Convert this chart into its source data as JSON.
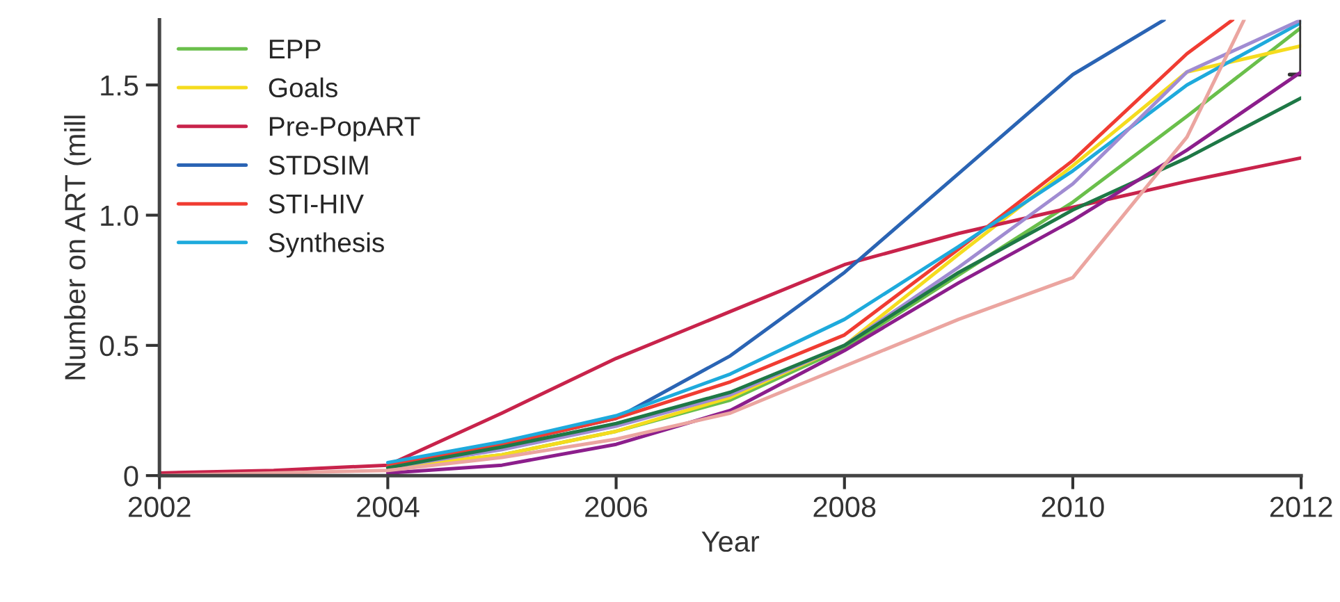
{
  "chart_data": {
    "type": "line",
    "xlabel": "Year",
    "ylabel": "Number on ART (mill",
    "xlim": [
      2002,
      2012
    ],
    "xticks": [
      2002,
      2004,
      2006,
      2008,
      2010,
      2012
    ],
    "ylim": [
      0,
      1.75
    ],
    "yticks": [
      0,
      {
        "value": 0.5,
        "label": "0.5"
      },
      {
        "value": 1.0,
        "label": "1.0"
      },
      {
        "value": 1.5,
        "label": "1.5"
      }
    ],
    "grid": false,
    "legend": "top left",
    "line_style": "solid",
    "marker": "none",
    "series": [
      {
        "name": "EPP",
        "color": "#6abf4b",
        "x": [
          2004,
          2005,
          2006,
          2007,
          2008,
          2009,
          2010,
          2011,
          2012
        ],
        "values": [
          0.03,
          0.08,
          0.17,
          0.29,
          0.49,
          0.77,
          1.05,
          1.38,
          1.72
        ]
      },
      {
        "name": "Goals",
        "color": "#f5dc1e",
        "x": [
          2004,
          2005,
          2006,
          2007,
          2008,
          2009,
          2010,
          2011,
          2012
        ],
        "values": [
          0.03,
          0.08,
          0.17,
          0.3,
          0.5,
          0.85,
          1.19,
          1.55,
          1.65
        ]
      },
      {
        "name": "Pre-PopART",
        "color": "#c8234b",
        "x": [
          2002,
          2003,
          2004,
          2005,
          2006,
          2007,
          2008,
          2009,
          2010,
          2011,
          2012
        ],
        "values": [
          0.01,
          0.02,
          0.04,
          0.24,
          0.45,
          0.63,
          0.81,
          0.93,
          1.03,
          1.13,
          1.22
        ]
      },
      {
        "name": "STDSIM",
        "color": "#2a64b4",
        "x": [
          2004,
          2005,
          2006,
          2007,
          2008,
          2009,
          2010,
          2010.8
        ],
        "values": [
          0.04,
          0.12,
          0.22,
          0.46,
          0.78,
          1.16,
          1.54,
          1.75
        ]
      },
      {
        "name": "STI-HIV",
        "color": "#f03c32",
        "x": [
          2004,
          2005,
          2006,
          2007,
          2008,
          2009,
          2010,
          2011,
          2011.4
        ],
        "values": [
          0.04,
          0.12,
          0.22,
          0.36,
          0.54,
          0.87,
          1.21,
          1.62,
          1.75
        ]
      },
      {
        "name": "Synthesis",
        "color": "#1eaadc",
        "x": [
          2004,
          2005,
          2006,
          2007,
          2008,
          2009,
          2010,
          2011,
          2012
        ],
        "values": [
          0.05,
          0.13,
          0.23,
          0.39,
          0.6,
          0.88,
          1.17,
          1.5,
          1.74
        ]
      },
      {
        "color": "#a08cd2",
        "x": [
          2004,
          2005,
          2006,
          2007,
          2008,
          2009,
          2010,
          2011,
          2012
        ],
        "values": [
          0.03,
          0.1,
          0.19,
          0.31,
          0.5,
          0.8,
          1.12,
          1.55,
          1.75
        ],
        "errors": [
          null,
          null,
          null,
          null,
          null,
          null,
          null,
          null,
          [
            1.54,
            1.75
          ]
        ]
      },
      {
        "color": "#1e7846",
        "x": [
          2004,
          2005,
          2006,
          2007,
          2008,
          2009,
          2010,
          2011,
          2012
        ],
        "values": [
          0.03,
          0.11,
          0.2,
          0.32,
          0.5,
          0.78,
          1.02,
          1.22,
          1.45
        ]
      },
      {
        "color": "#8c1e8c",
        "x": [
          2004,
          2005,
          2006,
          2007,
          2008,
          2009,
          2010,
          2011,
          2012
        ],
        "values": [
          0.01,
          0.04,
          0.12,
          0.25,
          0.48,
          0.74,
          0.98,
          1.25,
          1.55
        ]
      },
      {
        "color": "#eba5a0",
        "x": [
          2002,
          2003,
          2004,
          2005,
          2006,
          2007,
          2008,
          2009,
          2010,
          2011,
          2011.5
        ],
        "values": [
          0.0,
          0.01,
          0.02,
          0.07,
          0.14,
          0.24,
          0.42,
          0.6,
          0.76,
          1.3,
          1.75
        ]
      }
    ]
  }
}
